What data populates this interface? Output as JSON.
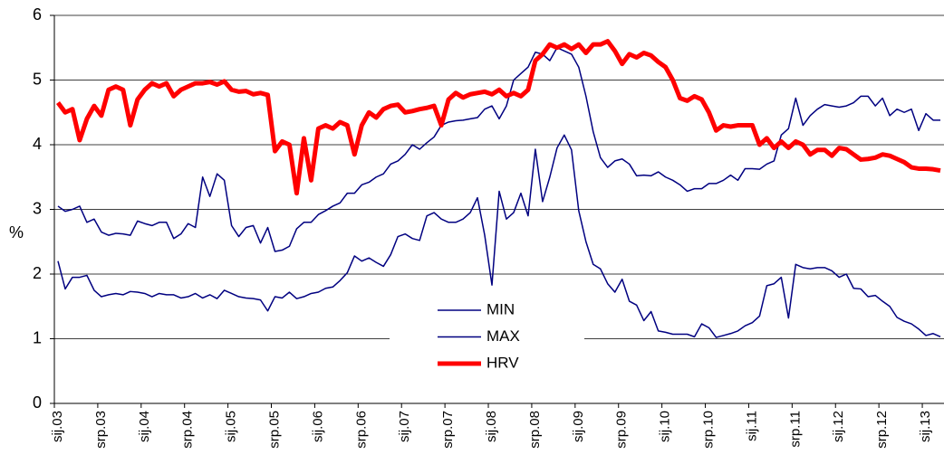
{
  "chart_data": {
    "type": "line",
    "y_label": "%",
    "categories": [
      "sij.03",
      null,
      null,
      null,
      null,
      null,
      "srp.03",
      null,
      null,
      null,
      null,
      null,
      "sij.04",
      null,
      null,
      null,
      null,
      null,
      "srp.04",
      null,
      null,
      null,
      null,
      null,
      "sij.05",
      null,
      null,
      null,
      null,
      null,
      "srp.05",
      null,
      null,
      null,
      null,
      null,
      "sij.06",
      null,
      null,
      null,
      null,
      null,
      "srp.06",
      null,
      null,
      null,
      null,
      null,
      "sij.07",
      null,
      null,
      null,
      null,
      null,
      "srp.07",
      null,
      null,
      null,
      null,
      null,
      "sij.08",
      null,
      null,
      null,
      null,
      null,
      "srp.08",
      null,
      null,
      null,
      null,
      null,
      "sij.09",
      null,
      null,
      null,
      null,
      null,
      "srp.09",
      null,
      null,
      null,
      null,
      null,
      "sij.10",
      null,
      null,
      null,
      null,
      null,
      "srp.10",
      null,
      null,
      null,
      null,
      null,
      "sij.11",
      null,
      null,
      null,
      null,
      null,
      "srp.11",
      null,
      null,
      null,
      null,
      null,
      "sij.12",
      null,
      null,
      null,
      null,
      null,
      "srp.12",
      null,
      null,
      null,
      null,
      null,
      "sij.13",
      null,
      null
    ],
    "series": [
      {
        "name": "MIN",
        "color": "#000080",
        "width": 1.5,
        "values": [
          2.2,
          1.77,
          1.95,
          1.95,
          1.98,
          1.75,
          1.65,
          1.68,
          1.7,
          1.68,
          1.73,
          1.72,
          1.7,
          1.65,
          1.7,
          1.68,
          1.68,
          1.63,
          1.65,
          1.7,
          1.63,
          1.68,
          1.62,
          1.75,
          1.7,
          1.65,
          1.63,
          1.62,
          1.6,
          1.43,
          1.65,
          1.63,
          1.72,
          1.62,
          1.65,
          1.7,
          1.72,
          1.78,
          1.8,
          1.9,
          2.02,
          2.28,
          2.2,
          2.25,
          2.18,
          2.12,
          2.3,
          2.58,
          2.62,
          2.55,
          2.52,
          2.9,
          2.95,
          2.85,
          2.8,
          2.8,
          2.85,
          2.95,
          3.18,
          2.6,
          1.83,
          3.28,
          2.85,
          2.95,
          3.25,
          2.9,
          3.93,
          3.12,
          3.5,
          3.95,
          4.15,
          3.92,
          2.98,
          2.5,
          2.15,
          2.08,
          1.85,
          1.72,
          1.92,
          1.58,
          1.52,
          1.28,
          1.42,
          1.12,
          1.1,
          1.07,
          1.07,
          1.07,
          1.03,
          1.23,
          1.17,
          1.02,
          1.05,
          1.08,
          1.12,
          1.2,
          1.25,
          1.35,
          1.82,
          1.85,
          1.95,
          1.32,
          2.15,
          2.1,
          2.08,
          2.1,
          2.1,
          2.05,
          1.95,
          2.0,
          1.78,
          1.77,
          1.65,
          1.67,
          1.58,
          1.5,
          1.33,
          1.27,
          1.23,
          1.15,
          1.05,
          1.08,
          1.03
        ]
      },
      {
        "name": "MAX",
        "color": "#000080",
        "width": 1.5,
        "values": [
          3.05,
          2.97,
          3.0,
          3.05,
          2.8,
          2.85,
          2.65,
          2.6,
          2.63,
          2.62,
          2.6,
          2.82,
          2.78,
          2.75,
          2.8,
          2.8,
          2.55,
          2.62,
          2.78,
          2.72,
          3.5,
          3.2,
          3.55,
          3.45,
          2.75,
          2.58,
          2.72,
          2.75,
          2.48,
          2.72,
          2.35,
          2.37,
          2.43,
          2.7,
          2.8,
          2.8,
          2.92,
          2.98,
          3.05,
          3.1,
          3.25,
          3.25,
          3.38,
          3.42,
          3.5,
          3.55,
          3.7,
          3.75,
          3.85,
          4.0,
          3.93,
          4.03,
          4.12,
          4.3,
          4.35,
          4.37,
          4.38,
          4.4,
          4.42,
          4.55,
          4.6,
          4.4,
          4.6,
          5.0,
          5.1,
          5.2,
          5.43,
          5.4,
          5.3,
          5.5,
          5.45,
          5.4,
          5.2,
          4.75,
          4.2,
          3.8,
          3.65,
          3.75,
          3.78,
          3.7,
          3.52,
          3.53,
          3.52,
          3.58,
          3.5,
          3.45,
          3.38,
          3.28,
          3.32,
          3.32,
          3.4,
          3.4,
          3.45,
          3.53,
          3.45,
          3.63,
          3.63,
          3.62,
          3.7,
          3.75,
          4.15,
          4.25,
          4.72,
          4.3,
          4.45,
          4.55,
          4.62,
          4.6,
          4.58,
          4.6,
          4.65,
          4.75,
          4.75,
          4.6,
          4.72,
          4.45,
          4.55,
          4.5,
          4.55,
          4.22,
          4.48,
          4.38,
          4.38
        ]
      },
      {
        "name": "HRV",
        "color": "#ff0000",
        "width": 5,
        "values": [
          4.65,
          4.5,
          4.55,
          4.07,
          4.4,
          4.6,
          4.45,
          4.85,
          4.9,
          4.85,
          4.3,
          4.7,
          4.85,
          4.95,
          4.9,
          4.95,
          4.75,
          4.85,
          4.9,
          4.95,
          4.95,
          4.97,
          4.93,
          4.98,
          4.85,
          4.82,
          4.83,
          4.78,
          4.8,
          4.77,
          3.9,
          4.05,
          4.0,
          3.25,
          4.1,
          3.45,
          4.25,
          4.3,
          4.25,
          4.35,
          4.3,
          3.85,
          4.3,
          4.5,
          4.42,
          4.55,
          4.6,
          4.62,
          4.5,
          4.52,
          4.55,
          4.57,
          4.6,
          4.3,
          4.7,
          4.8,
          4.73,
          4.78,
          4.8,
          4.82,
          4.78,
          4.85,
          4.75,
          4.8,
          4.75,
          4.85,
          5.3,
          5.4,
          5.55,
          5.5,
          5.55,
          5.48,
          5.55,
          5.42,
          5.55,
          5.55,
          5.6,
          5.45,
          5.25,
          5.4,
          5.35,
          5.42,
          5.38,
          5.28,
          5.2,
          5.0,
          4.72,
          4.68,
          4.75,
          4.7,
          4.5,
          4.22,
          4.3,
          4.28,
          4.3,
          4.3,
          4.3,
          4.0,
          4.1,
          3.95,
          4.05,
          3.95,
          4.05,
          4.0,
          3.85,
          3.92,
          3.92,
          3.83,
          3.95,
          3.93,
          3.85,
          3.77,
          3.78,
          3.8,
          3.85,
          3.83,
          3.78,
          3.73,
          3.65,
          3.63,
          3.63,
          3.62,
          3.6
        ]
      }
    ],
    "ylim": [
      0,
      6
    ],
    "yticks": [
      0,
      1,
      2,
      3,
      4,
      5,
      6
    ],
    "grid": true,
    "legend": "lower center"
  }
}
